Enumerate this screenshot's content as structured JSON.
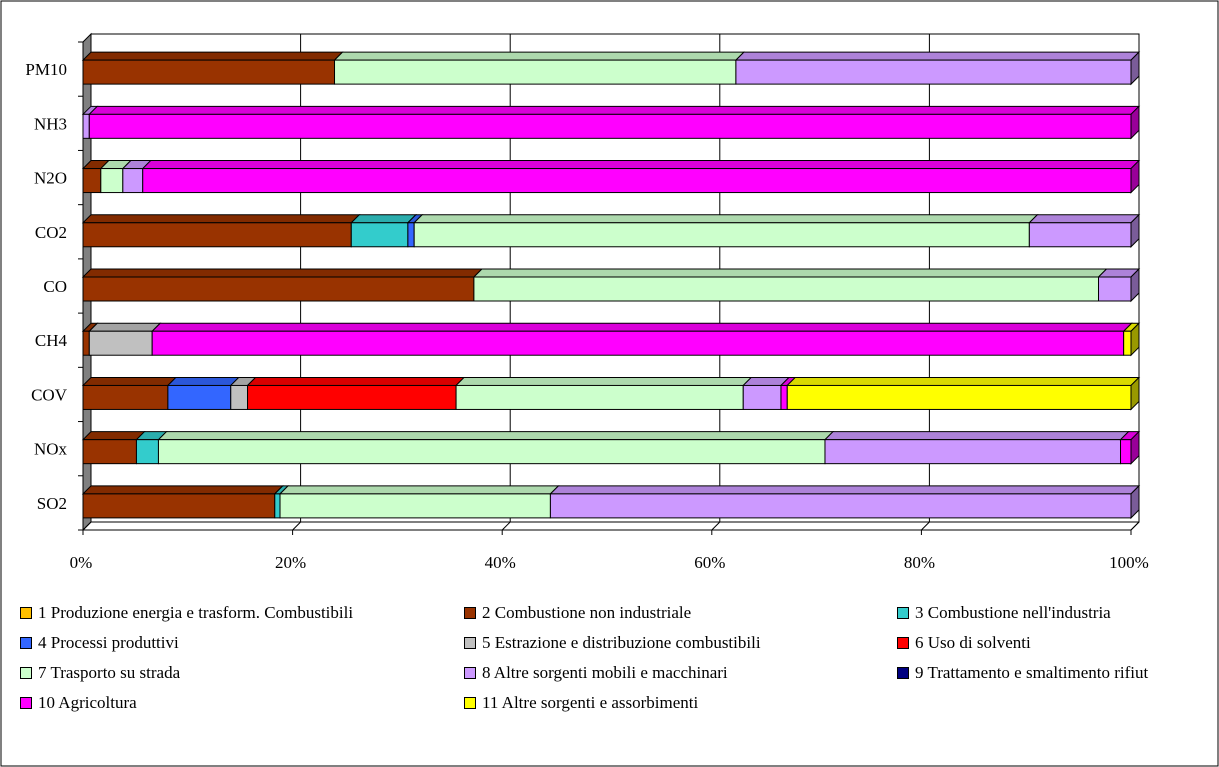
{
  "chart_data": {
    "type": "bar",
    "orientation": "horizontal",
    "stacked": "percent",
    "style": "3d",
    "categories": [
      "PM10",
      "NH3",
      "N2O",
      "CO2",
      "CO",
      "CH4",
      "COV",
      "NOx",
      "SO2"
    ],
    "x_ticks": [
      "0%",
      "20%",
      "40%",
      "60%",
      "80%",
      "100%"
    ],
    "xlim": [
      0,
      100
    ],
    "grid": true,
    "legend_position": "bottom",
    "series": [
      {
        "name": "1 Produzione energia e trasform. Combustibili",
        "color": "#FFC000",
        "values": [
          0,
          0,
          0,
          0,
          0,
          0,
          0,
          0,
          0
        ]
      },
      {
        "name": "2 Combustione non industriale",
        "color": "#993300",
        "values": [
          24,
          0,
          1.7,
          25.6,
          37.3,
          0.6,
          8.1,
          5.1,
          18.3
        ]
      },
      {
        "name": "3 Combustione nell'industria",
        "color": "#33CCCC",
        "values": [
          0,
          0,
          0,
          5.4,
          0,
          0,
          0,
          2.1,
          0.5
        ]
      },
      {
        "name": "4 Processi produttivi",
        "color": "#3366FF",
        "values": [
          0,
          0,
          0,
          0.6,
          0,
          0,
          6,
          0,
          0
        ]
      },
      {
        "name": "5 Estrazione e distribuzione combustibili",
        "color": "#C0C0C0",
        "values": [
          0,
          0,
          0,
          0,
          0,
          6,
          1.6,
          0,
          0
        ]
      },
      {
        "name": "6 Uso di solventi",
        "color": "#FF0000",
        "values": [
          0,
          0,
          0,
          0,
          0,
          0,
          19.9,
          0,
          0
        ]
      },
      {
        "name": "7 Trasporto su strada",
        "color": "#CCFFCC",
        "values": [
          38.3,
          0,
          2.1,
          58.7,
          59.6,
          0,
          27.4,
          63.6,
          25.8
        ]
      },
      {
        "name": "8 Altre sorgenti mobili e macchinari",
        "color": "#CC99FF",
        "values": [
          37.7,
          0.6,
          1.9,
          9.7,
          3.1,
          0,
          3.6,
          28.2,
          55.4
        ]
      },
      {
        "name": "9 Trattamento e smaltimento rifiuti",
        "color": "#000080",
        "values": [
          0,
          0,
          0,
          0,
          0,
          0,
          0,
          0,
          0
        ]
      },
      {
        "name": "10 Agricoltura",
        "color": "#FF00FF",
        "values": [
          0,
          99.4,
          94.3,
          0,
          0,
          92.7,
          0.6,
          1,
          0
        ]
      },
      {
        "name": "11 Altre sorgenti e assorbimenti",
        "color": "#FFFF00",
        "values": [
          0,
          0,
          0,
          0,
          0,
          0.7,
          32.8,
          0,
          0
        ]
      }
    ],
    "legend_label_9": "9 Trattamento e smaltimento rifiut"
  }
}
